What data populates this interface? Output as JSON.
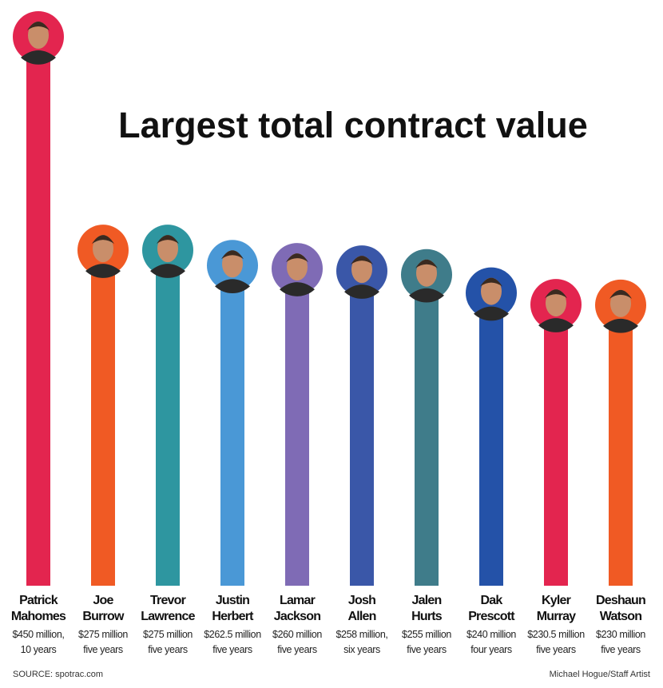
{
  "chart_data": {
    "type": "bar",
    "title": "Largest total contract value",
    "categories": [
      "Patrick\nMahomes",
      "Joe\nBurrow",
      "Trevor\nLawrence",
      "Justin\nHerbert",
      "Lamar\nJackson",
      "Josh\nAllen",
      "Jalen\nHurts",
      "Dak\nPrescott",
      "Kyler\nMurray",
      "Deshaun\nWatson"
    ],
    "values": [
      450,
      275,
      275,
      262.5,
      260,
      258,
      255,
      240,
      230.5,
      230
    ],
    "value_labels": [
      "$450 million,",
      "$275 million",
      "$275 million",
      "$262.5 million",
      "$260 million",
      "$258 million,",
      "$255 million",
      "$240 million",
      "$230.5 million",
      "$230 million"
    ],
    "terms": [
      "10 years",
      "five years",
      "five years",
      "five years",
      "five years",
      "six years",
      "five years",
      "four years",
      "five years",
      "five years"
    ],
    "colors": [
      "#e3254f",
      "#f05a24",
      "#2e96a0",
      "#4a98d6",
      "#7f6bb5",
      "#3a57a8",
      "#3f7c8a",
      "#2452a8",
      "#e3254f",
      "#f05a24"
    ],
    "source": "SOURCE: spotrac.com",
    "credit": "Michael Hogue/Staff Artist"
  }
}
